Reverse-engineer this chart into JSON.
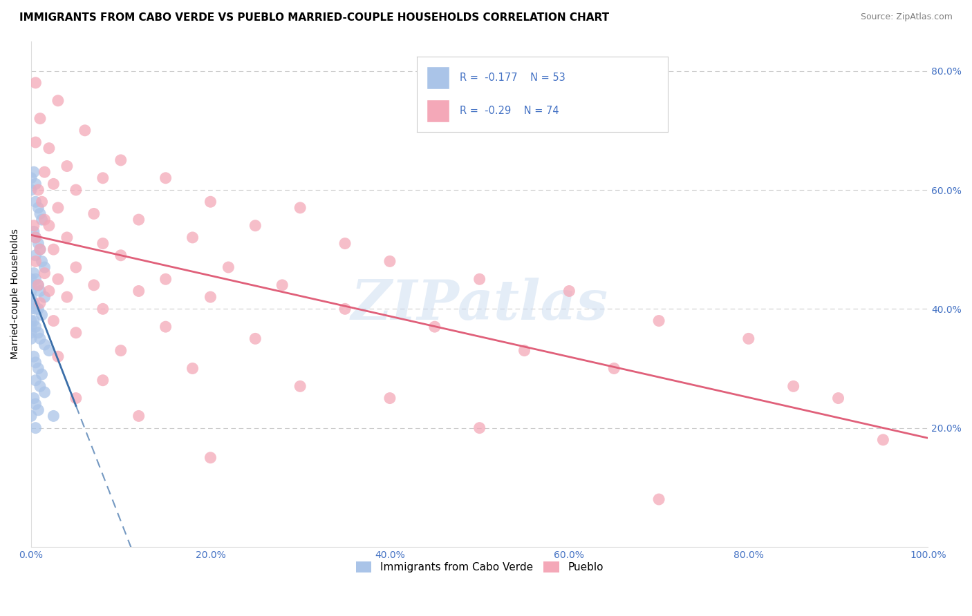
{
  "title": "IMMIGRANTS FROM CABO VERDE VS PUEBLO MARRIED-COUPLE HOUSEHOLDS CORRELATION CHART",
  "source": "Source: ZipAtlas.com",
  "ylabel": "Married-couple Households",
  "watermark": "ZIPatlas",
  "blue_R": -0.177,
  "blue_N": 53,
  "pink_R": -0.29,
  "pink_N": 74,
  "legend_label_blue": "Immigrants from Cabo Verde",
  "legend_label_pink": "Pueblo",
  "blue_color": "#aac4e8",
  "pink_color": "#f4a8b8",
  "blue_line_color": "#3a6ea8",
  "pink_line_color": "#e0607a",
  "blue_scatter": [
    [
      0.0,
      62
    ],
    [
      0.0,
      60
    ],
    [
      0.3,
      63
    ],
    [
      0.5,
      61
    ],
    [
      0.5,
      58
    ],
    [
      0.8,
      57
    ],
    [
      1.0,
      56
    ],
    [
      1.2,
      55
    ],
    [
      0.3,
      53
    ],
    [
      0.5,
      52
    ],
    [
      0.8,
      51
    ],
    [
      1.0,
      50
    ],
    [
      0.5,
      49
    ],
    [
      1.2,
      48
    ],
    [
      1.5,
      47
    ],
    [
      0.3,
      46
    ],
    [
      0.5,
      45
    ],
    [
      0.8,
      44
    ],
    [
      1.0,
      43
    ],
    [
      1.5,
      42
    ],
    [
      0.3,
      41
    ],
    [
      0.5,
      40
    ],
    [
      0.8,
      40
    ],
    [
      1.2,
      39
    ],
    [
      0.0,
      45
    ],
    [
      0.0,
      44
    ],
    [
      0.0,
      43
    ],
    [
      0.0,
      42
    ],
    [
      0.0,
      41
    ],
    [
      0.0,
      40
    ],
    [
      0.0,
      38
    ],
    [
      0.0,
      37
    ],
    [
      0.0,
      36
    ],
    [
      0.0,
      35
    ],
    [
      0.3,
      38
    ],
    [
      0.5,
      37
    ],
    [
      0.8,
      36
    ],
    [
      1.0,
      35
    ],
    [
      1.5,
      34
    ],
    [
      2.0,
      33
    ],
    [
      0.3,
      32
    ],
    [
      0.5,
      31
    ],
    [
      0.8,
      30
    ],
    [
      1.2,
      29
    ],
    [
      0.5,
      28
    ],
    [
      1.0,
      27
    ],
    [
      1.5,
      26
    ],
    [
      0.3,
      25
    ],
    [
      0.5,
      24
    ],
    [
      0.8,
      23
    ],
    [
      0.0,
      22
    ],
    [
      2.5,
      22
    ],
    [
      0.5,
      20
    ]
  ],
  "pink_scatter": [
    [
      0.5,
      78
    ],
    [
      3.0,
      75
    ],
    [
      1.0,
      72
    ],
    [
      6.0,
      70
    ],
    [
      0.5,
      68
    ],
    [
      2.0,
      67
    ],
    [
      10.0,
      65
    ],
    [
      4.0,
      64
    ],
    [
      1.5,
      63
    ],
    [
      8.0,
      62
    ],
    [
      2.5,
      61
    ],
    [
      15.0,
      62
    ],
    [
      0.8,
      60
    ],
    [
      5.0,
      60
    ],
    [
      1.2,
      58
    ],
    [
      20.0,
      58
    ],
    [
      3.0,
      57
    ],
    [
      30.0,
      57
    ],
    [
      7.0,
      56
    ],
    [
      1.5,
      55
    ],
    [
      0.3,
      54
    ],
    [
      12.0,
      55
    ],
    [
      2.0,
      54
    ],
    [
      25.0,
      54
    ],
    [
      0.5,
      52
    ],
    [
      4.0,
      52
    ],
    [
      18.0,
      52
    ],
    [
      8.0,
      51
    ],
    [
      1.0,
      50
    ],
    [
      35.0,
      51
    ],
    [
      2.5,
      50
    ],
    [
      10.0,
      49
    ],
    [
      0.5,
      48
    ],
    [
      40.0,
      48
    ],
    [
      5.0,
      47
    ],
    [
      22.0,
      47
    ],
    [
      1.5,
      46
    ],
    [
      3.0,
      45
    ],
    [
      15.0,
      45
    ],
    [
      50.0,
      45
    ],
    [
      0.8,
      44
    ],
    [
      7.0,
      44
    ],
    [
      28.0,
      44
    ],
    [
      2.0,
      43
    ],
    [
      12.0,
      43
    ],
    [
      60.0,
      43
    ],
    [
      4.0,
      42
    ],
    [
      20.0,
      42
    ],
    [
      1.0,
      41
    ],
    [
      8.0,
      40
    ],
    [
      35.0,
      40
    ],
    [
      70.0,
      38
    ],
    [
      2.5,
      38
    ],
    [
      15.0,
      37
    ],
    [
      45.0,
      37
    ],
    [
      5.0,
      36
    ],
    [
      25.0,
      35
    ],
    [
      80.0,
      35
    ],
    [
      10.0,
      33
    ],
    [
      55.0,
      33
    ],
    [
      3.0,
      32
    ],
    [
      18.0,
      30
    ],
    [
      65.0,
      30
    ],
    [
      8.0,
      28
    ],
    [
      30.0,
      27
    ],
    [
      85.0,
      27
    ],
    [
      5.0,
      25
    ],
    [
      40.0,
      25
    ],
    [
      90.0,
      25
    ],
    [
      12.0,
      22
    ],
    [
      50.0,
      20
    ],
    [
      95.0,
      18
    ],
    [
      20.0,
      15
    ],
    [
      70.0,
      8
    ]
  ],
  "xlim": [
    0,
    100
  ],
  "ylim": [
    0,
    85
  ],
  "yticks": [
    20,
    40,
    60,
    80
  ],
  "ytick_labels": [
    "20.0%",
    "40.0%",
    "60.0%",
    "80.0%"
  ],
  "xticks": [
    0,
    20,
    40,
    60,
    80,
    100
  ],
  "xtick_labels": [
    "0.0%",
    "20.0%",
    "40.0%",
    "60.0%",
    "80.0%",
    "100.0%"
  ],
  "grid_color": "#cccccc",
  "title_fontsize": 11,
  "label_fontsize": 10,
  "tick_fontsize": 10,
  "source_fontsize": 9,
  "tick_color": "#4472c4"
}
